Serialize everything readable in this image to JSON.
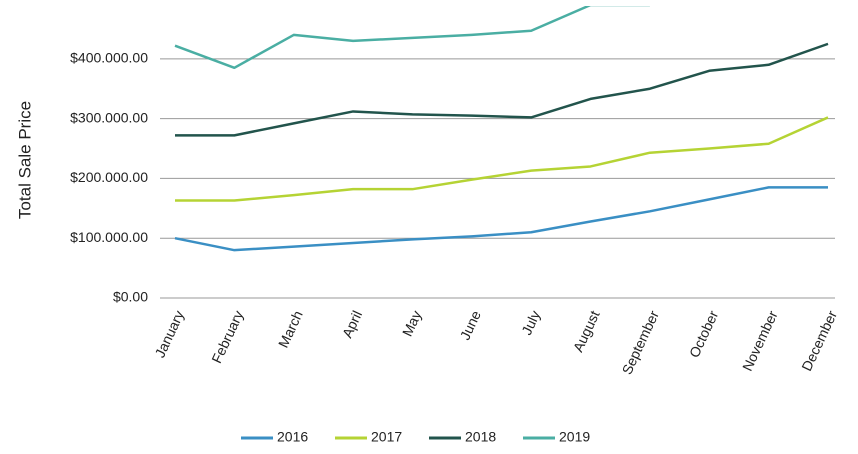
{
  "chart_data": {
    "type": "line",
    "y_label": "Total Sale Price",
    "categories": [
      "January",
      "February",
      "March",
      "April",
      "May",
      "June",
      "July",
      "August",
      "September",
      "October",
      "November",
      "December"
    ],
    "series": [
      {
        "name": "2016",
        "color": "#3a8fc4",
        "values": [
          100000,
          80000,
          86000,
          92000,
          98000,
          103000,
          110000,
          128000,
          145000,
          165000,
          185000,
          185000
        ]
      },
      {
        "name": "2017",
        "color": "#b5d334",
        "values": [
          163000,
          163000,
          172000,
          182000,
          182000,
          198000,
          213000,
          220000,
          243000,
          250000,
          258000,
          302000
        ]
      },
      {
        "name": "2018",
        "color": "#22544c",
        "values": [
          272000,
          272000,
          292000,
          312000,
          307000,
          305000,
          302000,
          333000,
          350000,
          380000,
          390000,
          425000
        ]
      },
      {
        "name": "2019",
        "color": "#4aaea3",
        "values": [
          422000,
          385000,
          440000,
          430000,
          435000,
          440000,
          447000,
          490000,
          490000,
          null,
          null,
          null
        ]
      }
    ],
    "ylim": [
      0,
      485000
    ],
    "yticks": [
      {
        "value": 0,
        "label": "$0.00"
      },
      {
        "value": 100000,
        "label": "$100.000.00"
      },
      {
        "value": 200000,
        "label": "$200.000.00"
      },
      {
        "value": 300000,
        "label": "$300.000.00"
      },
      {
        "value": 400000,
        "label": "$400.000.00"
      }
    ],
    "grid": true,
    "legend": "bottom"
  }
}
